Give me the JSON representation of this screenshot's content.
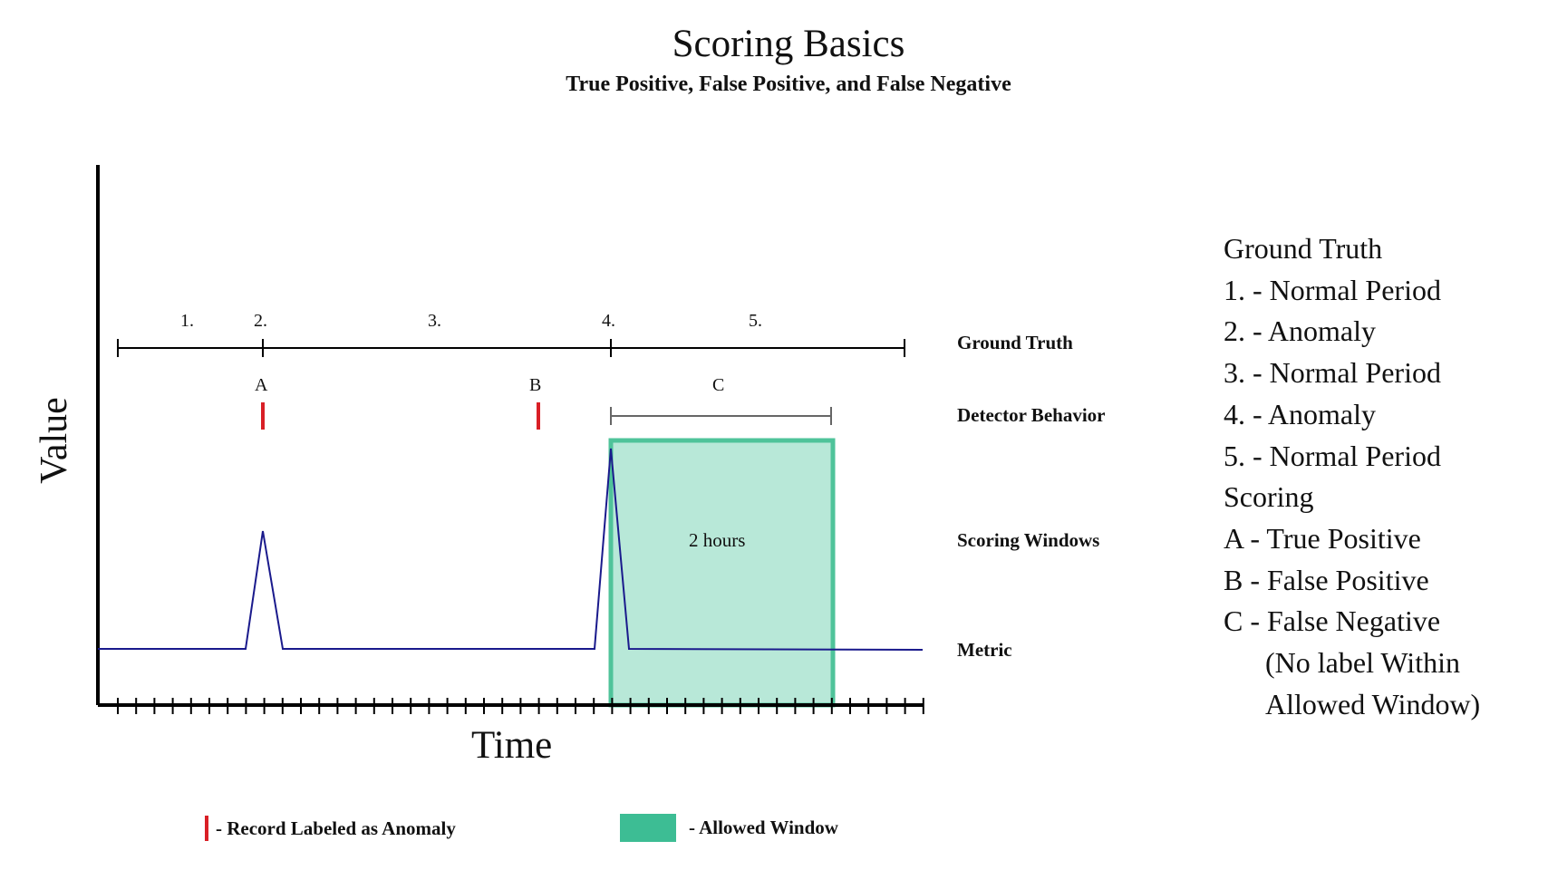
{
  "title": "Scoring Basics",
  "subtitle": "True Positive, False Positive, and False Negative",
  "axes": {
    "y_label": "Value",
    "x_label": "Time"
  },
  "rows": {
    "ground_truth": "Ground Truth",
    "detector_behavior": "Detector Behavior",
    "scoring_windows": "Scoring Windows",
    "metric": "Metric"
  },
  "segments": [
    "1.",
    "2.",
    "3.",
    "4.",
    "5."
  ],
  "detector_marks": [
    "A",
    "B"
  ],
  "window": {
    "label": "C",
    "duration": "2 hours"
  },
  "key": {
    "ground_truth_heading": "Ground Truth",
    "ground_truth_items": [
      "1. - Normal Period",
      "2. - Anomaly",
      "3. - Normal Period",
      "4. - Anomaly",
      "5. - Normal Period"
    ],
    "scoring_heading": "Scoring",
    "scoring_items": [
      "A - True Positive",
      "B - False Positive",
      "C - False Negative"
    ],
    "scoring_note": [
      "(No label Within",
      "Allowed Window)"
    ]
  },
  "legend": {
    "record": "- Record Labeled as Anomaly",
    "window": "- Allowed Window"
  },
  "colors": {
    "metric_line": "#1a1a8c",
    "anomaly_mark": "#d91f26",
    "window_fill": "#b8e8d8",
    "window_border": "#4fc39a",
    "legend_window": "#3dbd94",
    "axis": "#000000"
  }
}
